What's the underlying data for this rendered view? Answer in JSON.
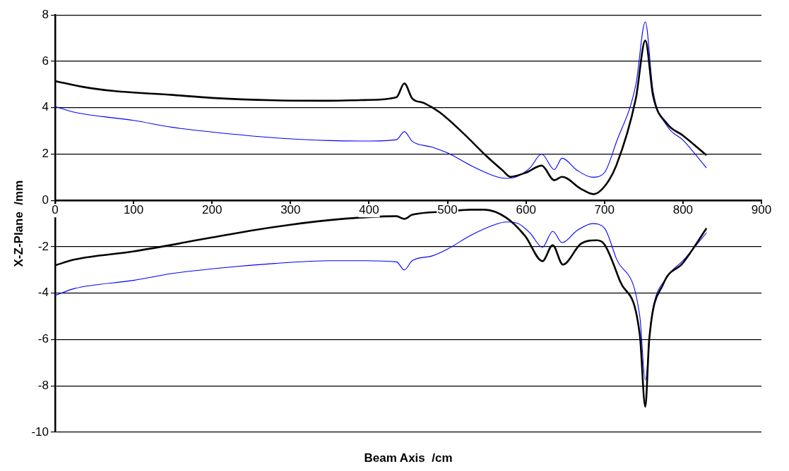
{
  "chart_data": {
    "type": "line",
    "xlabel": "Beam Axis  /cm",
    "ylabel": "X-Z-Plane  /mm",
    "xlim": [
      0,
      900
    ],
    "xticks": [
      0,
      100,
      200,
      300,
      400,
      500,
      600,
      700,
      800,
      900
    ],
    "ylim": [
      -10,
      8
    ],
    "yticks": [
      -10,
      -8,
      -6,
      -4,
      -2,
      0,
      2,
      4,
      6,
      8
    ],
    "grid": "y",
    "legend": false,
    "marker": "none",
    "line_style": "solid",
    "series": [
      {
        "color": "#000000",
        "x": [
          0,
          35,
          75,
          150,
          200,
          280,
          350,
          395,
          435,
          445,
          455,
          470,
          490,
          520,
          550,
          570,
          580,
          600,
          620,
          636,
          646,
          670,
          686,
          700,
          715,
          740,
          752,
          762,
          780,
          800,
          830
        ],
        "values": [
          5.15,
          4.9,
          4.72,
          4.55,
          4.42,
          4.32,
          4.3,
          4.33,
          4.45,
          5.05,
          4.4,
          4.2,
          3.8,
          2.9,
          1.9,
          1.3,
          1.02,
          1.2,
          1.5,
          0.87,
          1.02,
          0.5,
          0.27,
          0.6,
          1.5,
          4.4,
          6.9,
          4.5,
          3.3,
          2.8,
          1.95
        ]
      },
      {
        "color": "#0000ff",
        "x": [
          0,
          25,
          100,
          150,
          200,
          280,
          350,
          395,
          435,
          445,
          455,
          480,
          500,
          530,
          560,
          575,
          590,
          605,
          620,
          636,
          646,
          665,
          685,
          700,
          715,
          740,
          752,
          762,
          780,
          800,
          830
        ],
        "values": [
          4.05,
          3.8,
          3.45,
          3.15,
          2.95,
          2.7,
          2.58,
          2.56,
          2.62,
          2.97,
          2.55,
          2.3,
          2.05,
          1.5,
          1.05,
          0.95,
          1.05,
          1.4,
          2.0,
          1.33,
          1.82,
          1.3,
          1.0,
          1.2,
          2.5,
          5.0,
          7.7,
          4.7,
          3.2,
          2.6,
          1.4
        ]
      },
      {
        "color": "#000000",
        "x": [
          0,
          25,
          100,
          200,
          250,
          300,
          350,
          400,
          435,
          445,
          455,
          500,
          530,
          547,
          575,
          599,
          621,
          634,
          647,
          670,
          690,
          700,
          720,
          745,
          752,
          757,
          775,
          800,
          830
        ],
        "values": [
          -2.8,
          -2.55,
          -2.2,
          -1.6,
          -1.3,
          -1.05,
          -0.85,
          -0.72,
          -0.68,
          -0.8,
          -0.62,
          -0.48,
          -0.4,
          -0.4,
          -0.75,
          -1.54,
          -2.62,
          -1.93,
          -2.77,
          -1.87,
          -1.72,
          -1.9,
          -3.5,
          -5.8,
          -8.9,
          -6.0,
          -3.6,
          -2.7,
          -1.2
        ]
      },
      {
        "color": "#0000ff",
        "x": [
          0,
          25,
          100,
          150,
          200,
          280,
          350,
          395,
          435,
          445,
          455,
          480,
          500,
          530,
          560,
          575,
          590,
          605,
          621,
          634,
          646,
          665,
          685,
          700,
          715,
          745,
          752,
          760,
          780,
          800,
          830
        ],
        "values": [
          -4.1,
          -3.8,
          -3.45,
          -3.15,
          -2.95,
          -2.72,
          -2.6,
          -2.6,
          -2.65,
          -3.0,
          -2.6,
          -2.4,
          -2.1,
          -1.5,
          -1.05,
          -0.93,
          -1.0,
          -1.4,
          -2.02,
          -1.33,
          -1.82,
          -1.3,
          -1.0,
          -1.2,
          -2.5,
          -5.0,
          -7.75,
          -5.0,
          -3.3,
          -2.6,
          -1.4
        ]
      }
    ]
  }
}
